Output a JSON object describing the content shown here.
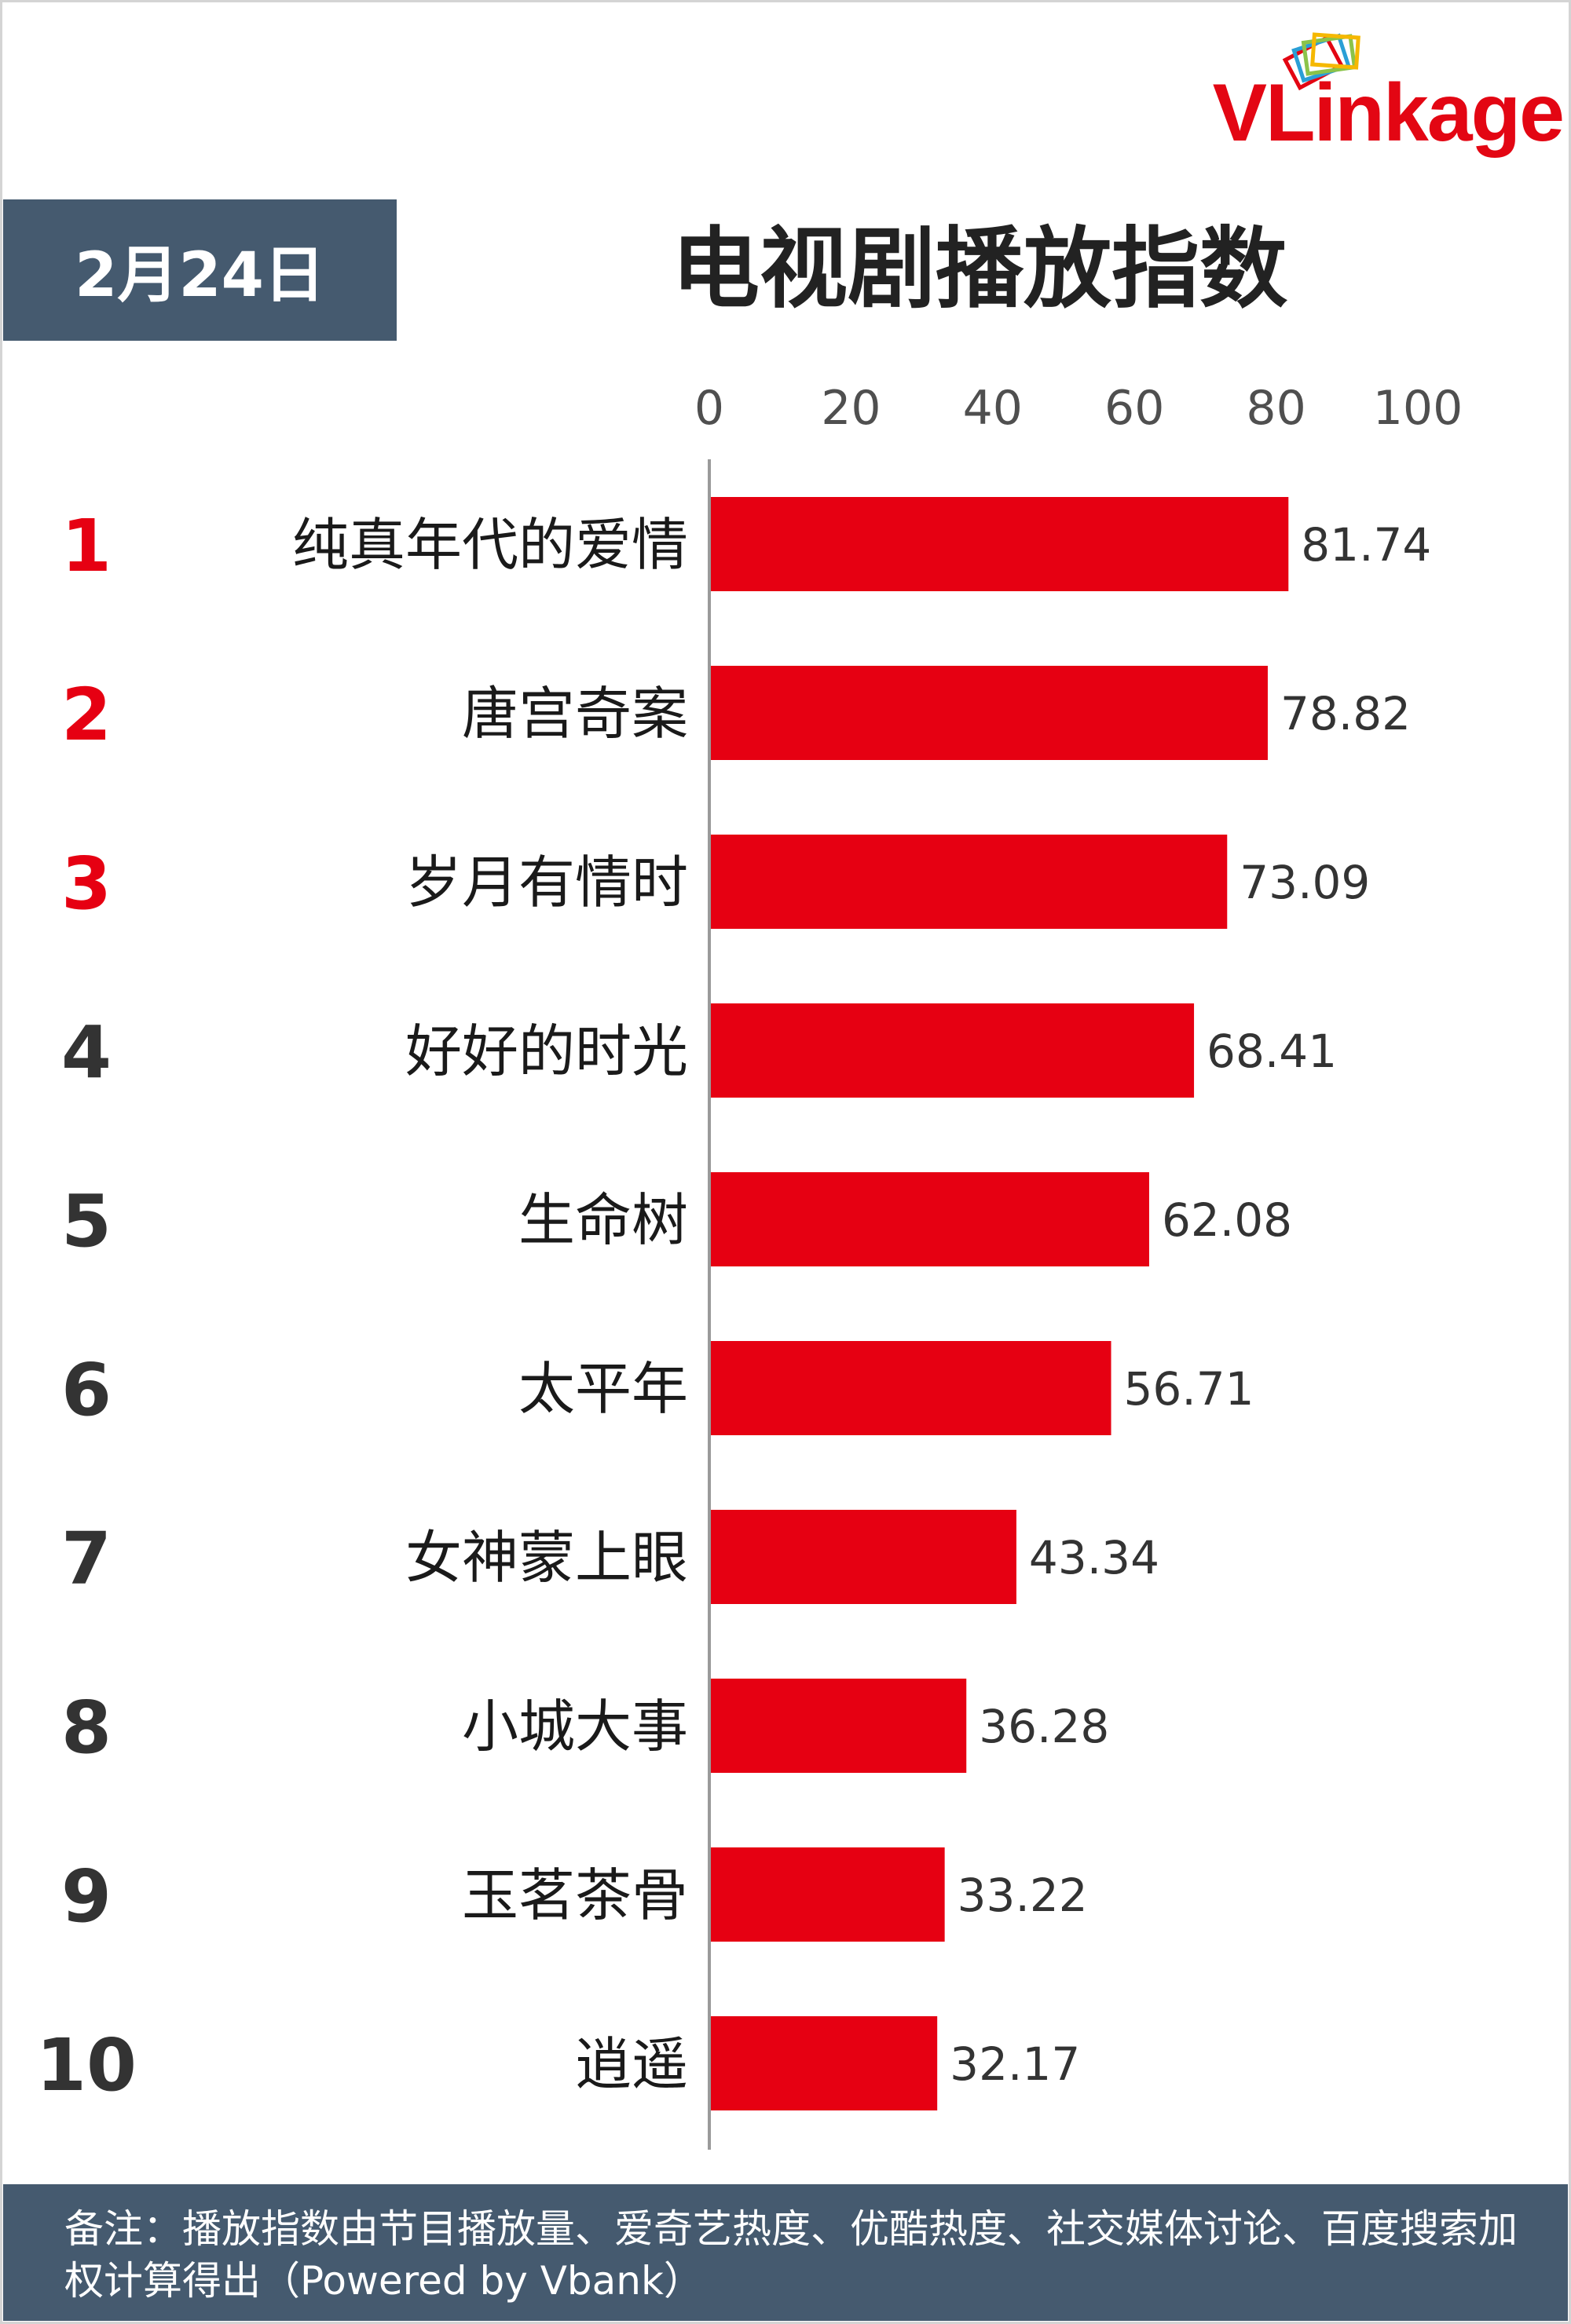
{
  "brand": {
    "name": "VLinkage",
    "color": "#e30613"
  },
  "header": {
    "date": "2月24日",
    "title": "电视剧播放指数"
  },
  "footnote": {
    "text": "备注：播放指数由节目播放量、爱奇艺热度、优酷热度、社交媒体讨论、百度搜索加权计算得出（Powered by Vbank）"
  },
  "colors": {
    "bar": "#e60012",
    "top_rank": "#e60012",
    "other_rank": "#333333",
    "banner": "#455a6f"
  },
  "chart_data": {
    "type": "bar",
    "orientation": "horizontal",
    "title": "电视剧播放指数",
    "xlim": [
      0,
      100
    ],
    "xticks": [
      0,
      20,
      40,
      60,
      80,
      100
    ],
    "ranks": [
      "1",
      "2",
      "3",
      "4",
      "5",
      "6",
      "7",
      "8",
      "9",
      "10"
    ],
    "categories": [
      "纯真年代的爱情",
      "唐宫奇案",
      "岁月有情时",
      "好好的时光",
      "生命树",
      "太平年",
      "女神蒙上眼",
      "小城大事",
      "玉茗茶骨",
      "逍遥"
    ],
    "values": [
      81.74,
      78.82,
      73.09,
      68.41,
      62.08,
      56.71,
      43.34,
      36.28,
      33.22,
      32.17
    ],
    "value_labels": [
      "81.74",
      "78.82",
      "73.09",
      "68.41",
      "62.08",
      "56.71",
      "43.34",
      "36.28",
      "33.22",
      "32.17"
    ],
    "grid": false,
    "legend": "none"
  }
}
